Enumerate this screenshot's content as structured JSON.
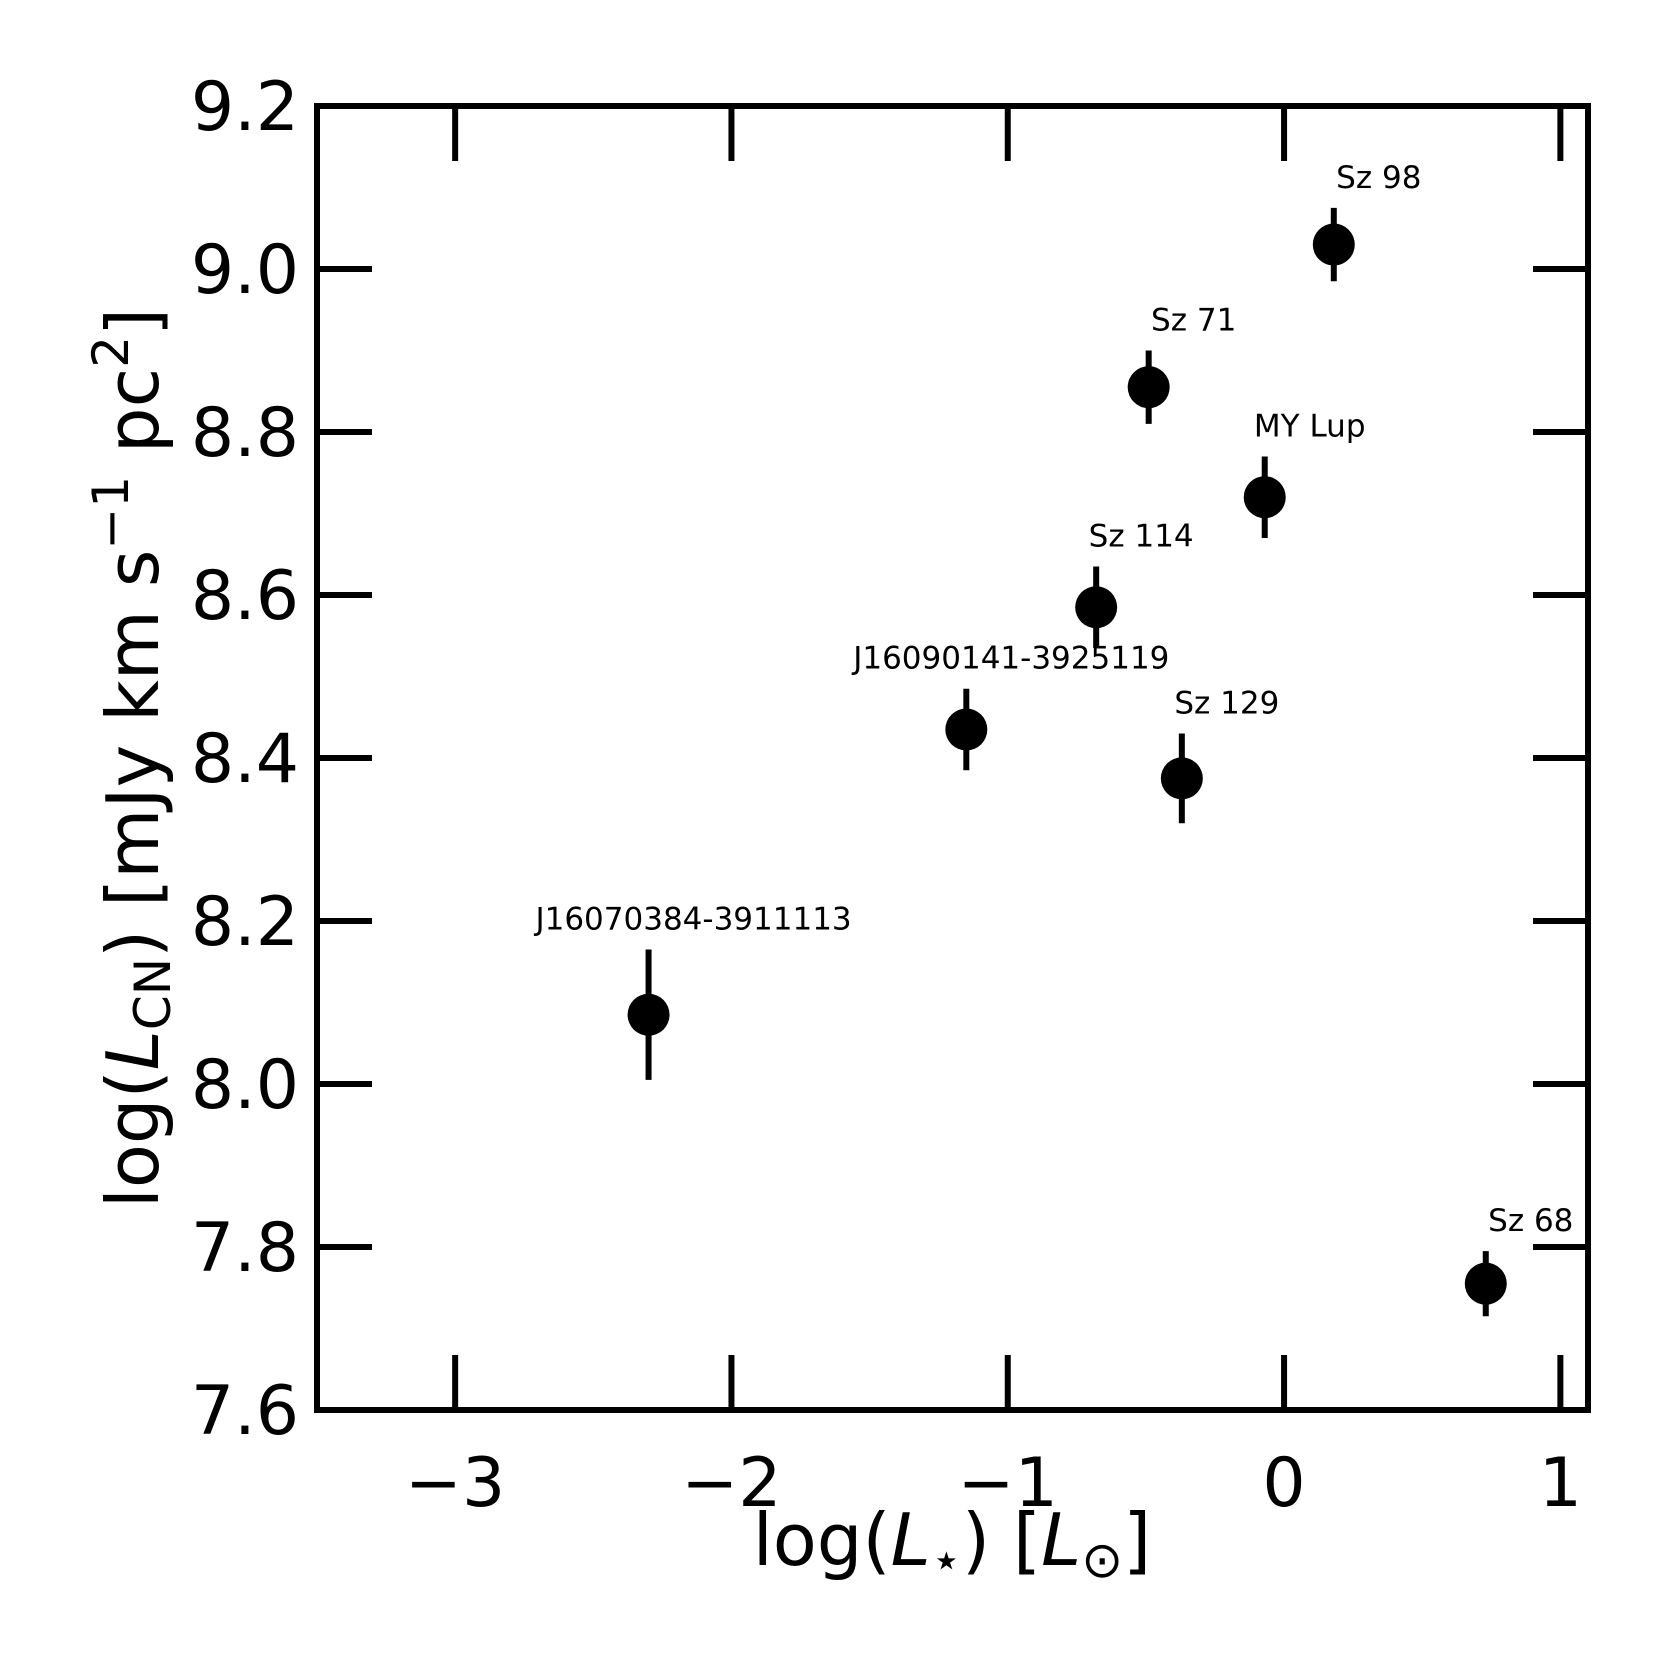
{
  "chart_data": {
    "type": "scatter",
    "xlabel": {
      "prefix": "log(",
      "var": "L",
      "sub": "⋆",
      "suffix": ") [",
      "unit_var": "L",
      "unit_sub": "⊙",
      "end": "]"
    },
    "ylabel": {
      "prefix": "log(",
      "var": "L",
      "sub": "CN",
      "middle": ") [mJy km s",
      "sup1": "−1",
      "middle2": " pc",
      "sup2": "2",
      "end": "]"
    },
    "xlim": [
      -3.5,
      1.1
    ],
    "ylim": [
      7.6,
      9.2
    ],
    "x_ticks": [
      {
        "value": -3,
        "label": "−3"
      },
      {
        "value": -2,
        "label": "−2"
      },
      {
        "value": -1,
        "label": "−1"
      },
      {
        "value": 0,
        "label": "0"
      },
      {
        "value": 1,
        "label": "1"
      }
    ],
    "y_ticks": [
      {
        "value": 7.6,
        "label": "7.6"
      },
      {
        "value": 7.8,
        "label": "7.8"
      },
      {
        "value": 8.0,
        "label": "8.0"
      },
      {
        "value": 8.2,
        "label": "8.2"
      },
      {
        "value": 8.4,
        "label": "8.4"
      },
      {
        "value": 8.6,
        "label": "8.6"
      },
      {
        "value": 8.8,
        "label": "8.8"
      },
      {
        "value": 9.0,
        "label": "9.0"
      },
      {
        "value": 9.2,
        "label": "9.2"
      }
    ],
    "grid": false,
    "points": [
      {
        "label": "J16070384-3911113",
        "x": -2.3,
        "y": 8.085,
        "err_low": 0.08,
        "err_high": 0.08
      },
      {
        "label": "J16090141-3925119",
        "x": -1.15,
        "y": 8.435,
        "err_low": 0.05,
        "err_high": 0.05
      },
      {
        "label": "Sz 114",
        "x": -0.68,
        "y": 8.585,
        "err_low": 0.05,
        "err_high": 0.05
      },
      {
        "label": "Sz 129",
        "x": -0.37,
        "y": 8.375,
        "err_low": 0.055,
        "err_high": 0.055
      },
      {
        "label": "Sz 71",
        "x": -0.49,
        "y": 8.855,
        "err_low": 0.045,
        "err_high": 0.045
      },
      {
        "label": "MY Lup",
        "x": -0.07,
        "y": 8.72,
        "err_low": 0.05,
        "err_high": 0.05
      },
      {
        "label": "Sz 98",
        "x": 0.18,
        "y": 9.03,
        "err_low": 0.045,
        "err_high": 0.045
      },
      {
        "label": "Sz 68",
        "x": 0.73,
        "y": 7.755,
        "err_low": 0.04,
        "err_high": 0.04
      }
    ]
  }
}
